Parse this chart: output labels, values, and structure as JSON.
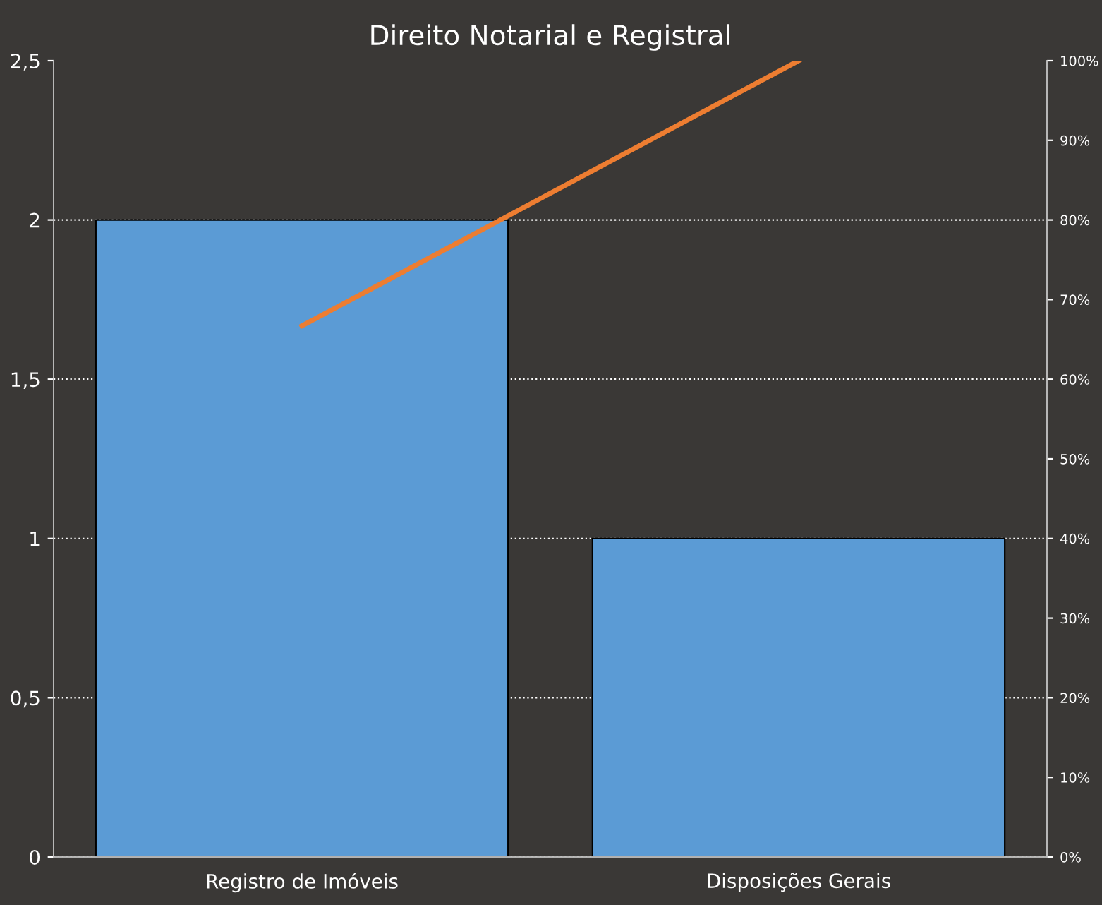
{
  "chart_data": {
    "type": "bar",
    "title": "Direito Notarial e Registral",
    "categories": [
      "Registro de Imóveis",
      "Disposições Gerais"
    ],
    "series": [
      {
        "color": "#5b9bd5",
        "values": [
          2,
          1
        ]
      },
      {
        "type": "line",
        "color": "#ed7d31",
        "axis": "y2",
        "values": [
          66.7,
          100
        ]
      }
    ],
    "ylim": [
      0,
      2.5
    ],
    "yticks": [
      0,
      {
        "value": 0.5,
        "label": "0,5"
      },
      1,
      {
        "value": 1.5,
        "label": "1,5"
      },
      2,
      {
        "value": 2.5,
        "label": "2,5"
      }
    ],
    "y2lim": [
      0,
      100
    ],
    "y2ticks": [
      {
        "value": 0,
        "label": "0%"
      },
      {
        "value": 10,
        "label": "10%"
      },
      {
        "value": 20,
        "label": "20%"
      },
      {
        "value": 30,
        "label": "30%"
      },
      {
        "value": 40,
        "label": "40%"
      },
      {
        "value": 50,
        "label": "50%"
      },
      {
        "value": 60,
        "label": "60%"
      },
      {
        "value": 70,
        "label": "70%"
      },
      {
        "value": 80,
        "label": "80%"
      },
      {
        "value": 90,
        "label": "90%"
      },
      {
        "value": 100,
        "label": "100%"
      }
    ],
    "grid": "y",
    "line_style": "solid",
    "marker": "none"
  }
}
